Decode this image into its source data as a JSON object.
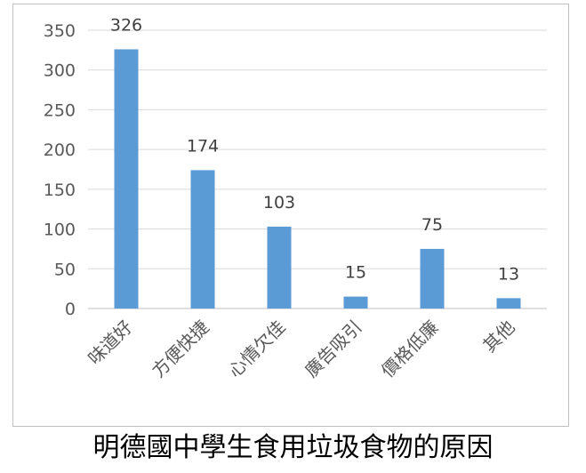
{
  "caption": "明德國中學生食用垃圾食物的原因",
  "colors": {
    "bar": "#5b9bd5",
    "grid": "#d9d9d9",
    "axis": "#bfbfbf",
    "border": "#bfbfbf"
  },
  "chart_data": {
    "type": "bar",
    "title": "",
    "xlabel": "",
    "ylabel": "",
    "categories": [
      "味道好",
      "方便快捷",
      "心情欠佳",
      "廣告吸引",
      "價格低廉",
      "其他"
    ],
    "values": [
      326,
      174,
      103,
      15,
      75,
      13
    ],
    "data_labels": [
      "326",
      "174",
      "103",
      "15",
      "75",
      "13"
    ],
    "ylim": [
      0,
      350
    ],
    "yticks": [
      0,
      50,
      100,
      150,
      200,
      250,
      300,
      350
    ],
    "ytick_labels": [
      "0",
      "50",
      "100",
      "150",
      "200",
      "250",
      "300",
      "350"
    ],
    "grid": true,
    "legend": "none",
    "bar_color": "#5b9bd5"
  }
}
